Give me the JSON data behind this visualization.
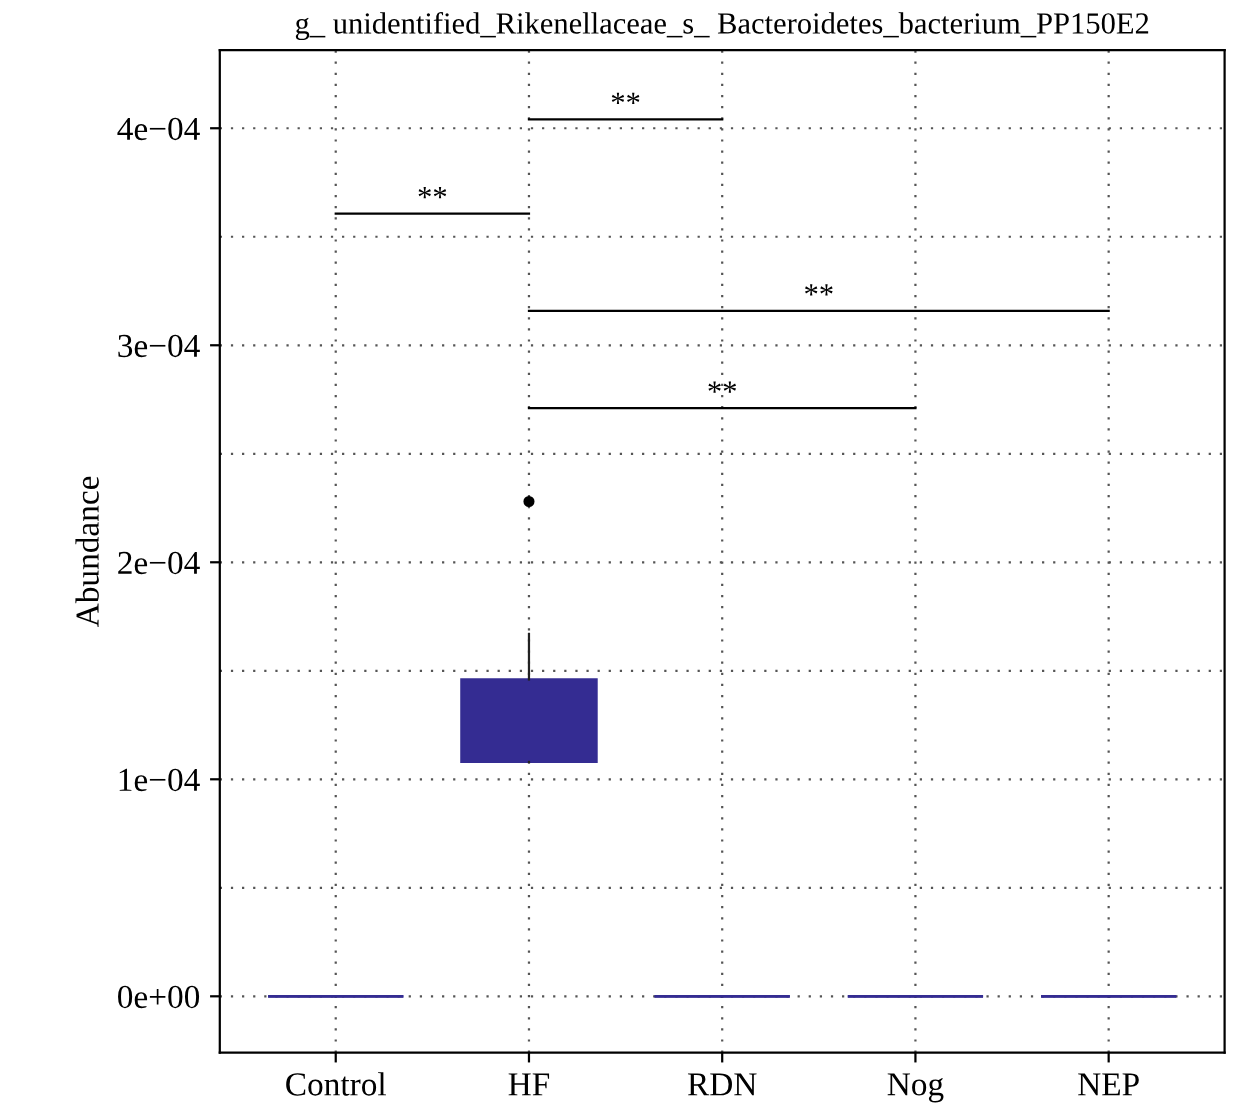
{
  "chart_data": {
    "type": "box",
    "title": "g_ unidentified_Rikenellaceae_s_ Bacteroidetes_bacterium_PP150E2",
    "ylabel": "Abundance",
    "categories": [
      "Control",
      "HF",
      "RDN",
      "Nog",
      "NEP"
    ],
    "boxes": [
      {
        "low": 0,
        "q1": 0,
        "median": 0,
        "q3": 0,
        "high": 0
      },
      {
        "low": 0.000108,
        "q1": 0.000108,
        "median": 0.00011,
        "q3": 0.000146,
        "high": 0.000167,
        "outliers": [
          0.000228
        ]
      },
      {
        "low": 0,
        "q1": 0,
        "median": 0,
        "q3": 0,
        "high": 0
      },
      {
        "low": 0,
        "q1": 0,
        "median": 0,
        "q3": 0,
        "high": 0
      },
      {
        "low": 0,
        "q1": 0,
        "median": 0,
        "q3": 0,
        "high": 0
      }
    ],
    "color": "#342c92",
    "ylim": [
      -2.6e-05,
      0.000436
    ],
    "yticks": [
      {
        "value": 0,
        "label": "0e+00"
      },
      {
        "value": 5e-05,
        "label": null
      },
      {
        "value": 0.0001,
        "label": "1e−04"
      },
      {
        "value": 0.00015,
        "label": null
      },
      {
        "value": 0.0002,
        "label": "2e−04"
      },
      {
        "value": 0.00025,
        "label": null
      },
      {
        "value": 0.0003,
        "label": "3e−04"
      },
      {
        "value": 0.00035,
        "label": null
      },
      {
        "value": 0.0004,
        "label": "4e−04"
      }
    ],
    "grid": true,
    "annotations": [
      "**",
      "**",
      "**",
      "**"
    ]
  }
}
